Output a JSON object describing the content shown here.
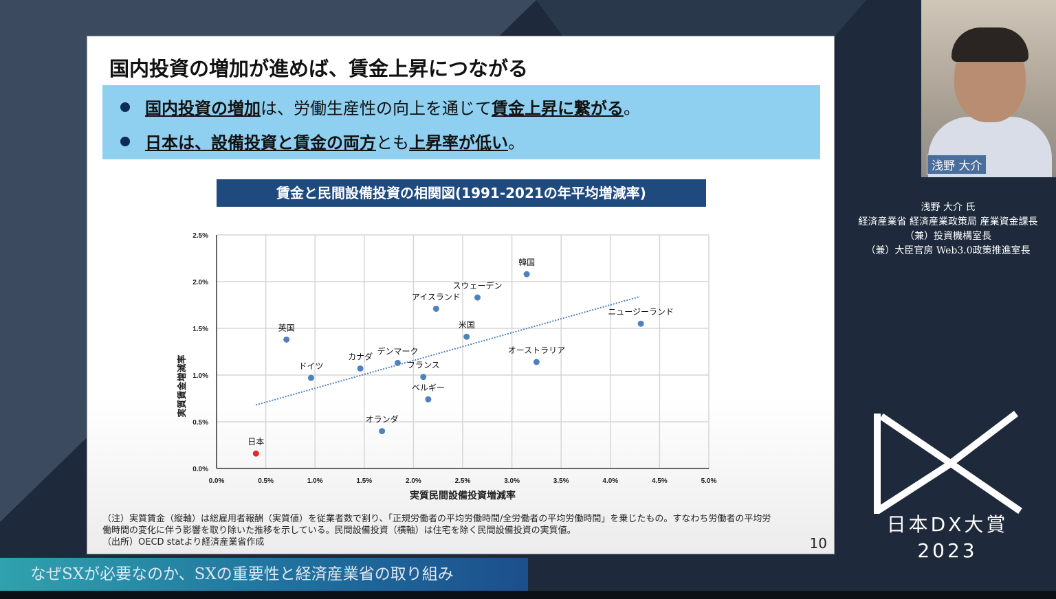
{
  "slide": {
    "title": "国内投資の増加が進めば、賃金上昇につながる",
    "bullets": [
      {
        "parts": [
          {
            "t": "国内投資の増加",
            "b": true
          },
          {
            "t": "は、労働生産性の向上を通じて",
            "b": false
          },
          {
            "t": "賃金上昇に繋がる",
            "b": true
          },
          {
            "t": "。",
            "b": false
          }
        ]
      },
      {
        "parts": [
          {
            "t": "日本は、設備投資と賃金の両方",
            "b": true
          },
          {
            "t": "とも",
            "b": false
          },
          {
            "t": "上昇率が低い",
            "b": true
          },
          {
            "t": "。",
            "b": false
          }
        ]
      }
    ],
    "chart_title": "賃金と民間設備投資の相関図(1991-2021の年平均増減率)",
    "note_lines": [
      "（注）実質賃金（縦軸）は総雇用者報酬（実質値）を従業者数で割り、「正規労働者の平均労働時間/全労働者の平均労働時間」を乗じたもの。すなわち労働者の平均労",
      "働時間の変化に伴う影響を取り除いた推移を示している。民間設備投資（横軸）は住宅を除く民間設備投資の実質値。",
      "（出所）OECD statより経済産業省作成"
    ],
    "page_number": "10"
  },
  "chart_data": {
    "type": "scatter",
    "xlabel": "実質民間設備投資増減率",
    "ylabel": "実質賃金増減率",
    "xlim": [
      0,
      5.0
    ],
    "ylim": [
      0,
      2.5
    ],
    "xticks": [
      "0.0%",
      "0.5%",
      "1.0%",
      "1.5%",
      "2.0%",
      "2.5%",
      "3.0%",
      "3.5%",
      "4.0%",
      "4.5%",
      "5.0%"
    ],
    "yticks": [
      "0.0%",
      "0.5%",
      "1.0%",
      "1.5%",
      "2.0%",
      "2.5%"
    ],
    "grid": true,
    "colors": {
      "point": "#4f81bd",
      "highlight": "#e8271f",
      "trend": "#4f81bd"
    },
    "points": [
      {
        "label": "日本",
        "x": 0.4,
        "y": 0.16,
        "highlight": true
      },
      {
        "label": "英国",
        "x": 0.71,
        "y": 1.38
      },
      {
        "label": "ドイツ",
        "x": 0.96,
        "y": 0.97
      },
      {
        "label": "カナダ",
        "x": 1.46,
        "y": 1.07
      },
      {
        "label": "デンマーク",
        "x": 1.84,
        "y": 1.13
      },
      {
        "label": "フランス",
        "x": 2.1,
        "y": 0.98
      },
      {
        "label": "ベルギー",
        "x": 2.15,
        "y": 0.74
      },
      {
        "label": "オランダ",
        "x": 1.68,
        "y": 0.4
      },
      {
        "label": "アイスランド",
        "x": 2.23,
        "y": 1.71
      },
      {
        "label": "スウェーデン",
        "x": 2.65,
        "y": 1.83
      },
      {
        "label": "米国",
        "x": 2.54,
        "y": 1.41
      },
      {
        "label": "韓国",
        "x": 3.15,
        "y": 2.08
      },
      {
        "label": "オーストラリア",
        "x": 3.25,
        "y": 1.14
      },
      {
        "label": "ニュージーランド",
        "x": 4.31,
        "y": 1.55
      }
    ],
    "trendline": {
      "style": "dotted",
      "from": [
        0.4,
        0.68
      ],
      "to": [
        4.3,
        1.84
      ]
    }
  },
  "webcam": {
    "name_tag": "浅野 大介"
  },
  "speaker": {
    "lines": [
      "浅野 大介 氏",
      "経済産業省 経済産業政策局 産業資金課長",
      "（兼）投資機構室長",
      "（兼）大臣官房 Web3.0政策推進室長"
    ]
  },
  "caption": "なぜSXが必要なのか、SXの重要性と経済産業省の取り組み",
  "logo": {
    "line1": "日本DX大賞",
    "line2": "2023"
  }
}
